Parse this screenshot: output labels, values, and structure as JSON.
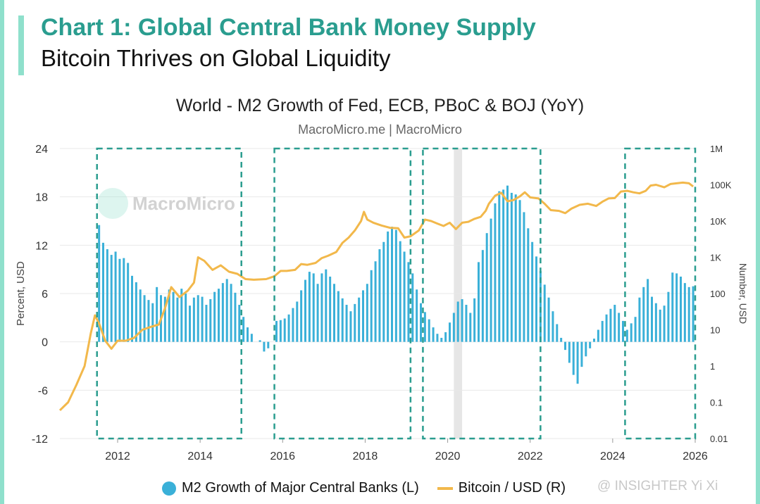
{
  "header": {
    "title": "Chart 1: Global Central Bank Money Supply",
    "subtitle": "Bitcoin Thrives on Global Liquidity"
  },
  "chart_data": {
    "type": "bar+line",
    "title": "World - M2 Growth of Fed, ECB, PBoC & BOJ (YoY)",
    "subtitle": "MacroMicro.me | MacroMicro",
    "watermark_logo_text": "MacroMicro",
    "ylabel_left": "Percent, USD",
    "ylabel_right": "Number, USD",
    "ylim_left": [
      -12,
      24
    ],
    "yticks_left": [
      "24",
      "18",
      "12",
      "6",
      "0",
      "-6",
      "-12"
    ],
    "yticks_right": [
      "1M",
      "100K",
      "10K",
      "1K",
      "100",
      "10",
      "1",
      "0.1",
      "0.01"
    ],
    "ylim_right_log10": [
      -2,
      6
    ],
    "xlim": [
      2010.6,
      2026.0
    ],
    "xticks": [
      "2012",
      "2014",
      "2016",
      "2018",
      "2020",
      "2022",
      "2024",
      "2026"
    ],
    "grid": true,
    "recession_band": [
      2020.15,
      2020.35
    ],
    "highlight_boxes": [
      [
        2011.5,
        2015.0
      ],
      [
        2015.8,
        2019.1
      ],
      [
        2019.4,
        2022.25
      ],
      [
        2024.3,
        2026.0
      ]
    ],
    "series": [
      {
        "name": "M2 Growth of Major Central Banks (L)",
        "type": "bar",
        "color": "#3ab0d8",
        "points": [
          [
            2011.55,
            14.5
          ],
          [
            2011.65,
            12.3
          ],
          [
            2011.75,
            11.5
          ],
          [
            2011.85,
            10.8
          ],
          [
            2011.95,
            11.2
          ],
          [
            2012.05,
            10.3
          ],
          [
            2012.15,
            10.4
          ],
          [
            2012.25,
            9.8
          ],
          [
            2012.35,
            8.2
          ],
          [
            2012.45,
            7.4
          ],
          [
            2012.55,
            6.5
          ],
          [
            2012.65,
            5.8
          ],
          [
            2012.75,
            5.2
          ],
          [
            2012.85,
            4.8
          ],
          [
            2012.95,
            6.8
          ],
          [
            2013.05,
            5.8
          ],
          [
            2013.15,
            5.6
          ],
          [
            2013.25,
            6.5
          ],
          [
            2013.35,
            6.2
          ],
          [
            2013.45,
            5.5
          ],
          [
            2013.55,
            6.6
          ],
          [
            2013.65,
            6.0
          ],
          [
            2013.75,
            4.5
          ],
          [
            2013.85,
            5.5
          ],
          [
            2013.95,
            5.8
          ],
          [
            2014.05,
            5.6
          ],
          [
            2014.15,
            4.6
          ],
          [
            2014.25,
            5.3
          ],
          [
            2014.35,
            6.2
          ],
          [
            2014.45,
            6.6
          ],
          [
            2014.55,
            7.3
          ],
          [
            2014.65,
            7.8
          ],
          [
            2014.75,
            7.2
          ],
          [
            2014.85,
            6.1
          ],
          [
            2014.95,
            4.6
          ],
          [
            2015.05,
            3.1
          ],
          [
            2015.15,
            1.8
          ],
          [
            2015.25,
            1.0
          ],
          [
            2015.45,
            0.2
          ],
          [
            2015.55,
            -1.2
          ],
          [
            2015.65,
            -0.8
          ],
          [
            2015.85,
            2.6
          ],
          [
            2015.95,
            2.7
          ],
          [
            2016.05,
            2.9
          ],
          [
            2016.15,
            3.4
          ],
          [
            2016.25,
            4.2
          ],
          [
            2016.35,
            5.0
          ],
          [
            2016.45,
            6.4
          ],
          [
            2016.55,
            7.7
          ],
          [
            2016.65,
            8.7
          ],
          [
            2016.75,
            8.5
          ],
          [
            2016.85,
            7.2
          ],
          [
            2016.95,
            8.5
          ],
          [
            2017.05,
            9.0
          ],
          [
            2017.15,
            8.1
          ],
          [
            2017.25,
            7.2
          ],
          [
            2017.35,
            6.3
          ],
          [
            2017.45,
            5.4
          ],
          [
            2017.55,
            4.6
          ],
          [
            2017.65,
            3.8
          ],
          [
            2017.75,
            4.7
          ],
          [
            2017.85,
            5.5
          ],
          [
            2017.95,
            6.4
          ],
          [
            2018.05,
            7.2
          ],
          [
            2018.15,
            8.9
          ],
          [
            2018.25,
            10.0
          ],
          [
            2018.35,
            11.5
          ],
          [
            2018.45,
            12.4
          ],
          [
            2018.55,
            13.7
          ],
          [
            2018.65,
            14.3
          ],
          [
            2018.75,
            13.9
          ],
          [
            2018.85,
            12.5
          ],
          [
            2018.95,
            11.2
          ],
          [
            2019.05,
            9.9
          ],
          [
            2019.15,
            8.5
          ],
          [
            2019.25,
            6.5
          ],
          [
            2019.35,
            4.8
          ],
          [
            2019.45,
            3.7
          ],
          [
            2019.55,
            2.8
          ],
          [
            2019.65,
            1.8
          ],
          [
            2019.75,
            1.0
          ],
          [
            2019.85,
            0.5
          ],
          [
            2019.95,
            1.2
          ],
          [
            2020.05,
            2.4
          ],
          [
            2020.15,
            3.6
          ],
          [
            2020.25,
            5.0
          ],
          [
            2020.35,
            5.3
          ],
          [
            2020.45,
            4.6
          ],
          [
            2020.55,
            3.6
          ],
          [
            2020.65,
            5.4
          ],
          [
            2020.75,
            9.9
          ],
          [
            2020.85,
            11.4
          ],
          [
            2020.95,
            13.5
          ],
          [
            2021.05,
            15.3
          ],
          [
            2021.15,
            17.2
          ],
          [
            2021.25,
            18.7
          ],
          [
            2021.35,
            18.9
          ],
          [
            2021.45,
            19.4
          ],
          [
            2021.55,
            18.5
          ],
          [
            2021.65,
            18.3
          ],
          [
            2021.75,
            17.6
          ],
          [
            2021.85,
            16.1
          ],
          [
            2021.95,
            14.1
          ],
          [
            2022.05,
            12.4
          ],
          [
            2022.15,
            10.6
          ],
          [
            2022.25,
            8.8
          ],
          [
            2022.35,
            7.1
          ],
          [
            2022.45,
            5.5
          ],
          [
            2022.55,
            3.8
          ],
          [
            2022.65,
            2.2
          ],
          [
            2022.75,
            0.5
          ],
          [
            2022.85,
            -1.0
          ],
          [
            2022.95,
            -2.6
          ],
          [
            2023.05,
            -4.1
          ],
          [
            2023.15,
            -5.2
          ],
          [
            2023.25,
            -3.1
          ],
          [
            2023.35,
            -1.8
          ],
          [
            2023.45,
            -0.8
          ],
          [
            2023.55,
            0.4
          ],
          [
            2023.65,
            1.5
          ],
          [
            2023.75,
            2.6
          ],
          [
            2023.85,
            3.4
          ],
          [
            2023.95,
            4.1
          ],
          [
            2024.05,
            4.6
          ],
          [
            2024.15,
            3.6
          ],
          [
            2024.25,
            2.6
          ],
          [
            2024.35,
            1.5
          ],
          [
            2024.45,
            2.3
          ],
          [
            2024.55,
            3.1
          ],
          [
            2024.65,
            5.5
          ],
          [
            2024.75,
            6.8
          ],
          [
            2024.85,
            7.8
          ],
          [
            2024.95,
            5.6
          ],
          [
            2025.05,
            4.8
          ],
          [
            2025.15,
            4.0
          ],
          [
            2025.25,
            4.5
          ],
          [
            2025.35,
            6.2
          ],
          [
            2025.45,
            8.6
          ],
          [
            2025.55,
            8.5
          ],
          [
            2025.65,
            8.1
          ],
          [
            2025.75,
            7.3
          ],
          [
            2025.85,
            6.8
          ],
          [
            2025.95,
            6.9
          ]
        ]
      },
      {
        "name": "Bitcoin / USD (R)",
        "type": "line",
        "color": "#f2b84b",
        "points": [
          [
            2010.6,
            0.06
          ],
          [
            2010.8,
            0.1
          ],
          [
            2011.0,
            0.3
          ],
          [
            2011.2,
            1.0
          ],
          [
            2011.35,
            8
          ],
          [
            2011.45,
            25
          ],
          [
            2011.55,
            15
          ],
          [
            2011.7,
            5
          ],
          [
            2011.85,
            3
          ],
          [
            2012.0,
            5
          ],
          [
            2012.2,
            5
          ],
          [
            2012.4,
            6
          ],
          [
            2012.6,
            10
          ],
          [
            2012.8,
            12
          ],
          [
            2013.0,
            14
          ],
          [
            2013.15,
            40
          ],
          [
            2013.3,
            150
          ],
          [
            2013.5,
            80
          ],
          [
            2013.7,
            120
          ],
          [
            2013.85,
            200
          ],
          [
            2013.95,
            1000
          ],
          [
            2014.1,
            800
          ],
          [
            2014.3,
            450
          ],
          [
            2014.5,
            600
          ],
          [
            2014.7,
            400
          ],
          [
            2014.9,
            350
          ],
          [
            2015.1,
            250
          ],
          [
            2015.3,
            240
          ],
          [
            2015.6,
            250
          ],
          [
            2015.8,
            300
          ],
          [
            2015.95,
            420
          ],
          [
            2016.1,
            420
          ],
          [
            2016.3,
            450
          ],
          [
            2016.45,
            650
          ],
          [
            2016.6,
            620
          ],
          [
            2016.8,
            700
          ],
          [
            2016.95,
            950
          ],
          [
            2017.1,
            1100
          ],
          [
            2017.3,
            1400
          ],
          [
            2017.45,
            2500
          ],
          [
            2017.6,
            3500
          ],
          [
            2017.75,
            5500
          ],
          [
            2017.9,
            10000
          ],
          [
            2017.97,
            18000
          ],
          [
            2018.05,
            11000
          ],
          [
            2018.2,
            9000
          ],
          [
            2018.4,
            7500
          ],
          [
            2018.6,
            6500
          ],
          [
            2018.8,
            6300
          ],
          [
            2018.95,
            3500
          ],
          [
            2019.1,
            3800
          ],
          [
            2019.3,
            5500
          ],
          [
            2019.45,
            11000
          ],
          [
            2019.6,
            10000
          ],
          [
            2019.75,
            8500
          ],
          [
            2019.9,
            7300
          ],
          [
            2020.05,
            9000
          ],
          [
            2020.2,
            6000
          ],
          [
            2020.35,
            9000
          ],
          [
            2020.5,
            9500
          ],
          [
            2020.65,
            11500
          ],
          [
            2020.8,
            13000
          ],
          [
            2020.92,
            19000
          ],
          [
            2021.0,
            30000
          ],
          [
            2021.15,
            50000
          ],
          [
            2021.3,
            60000
          ],
          [
            2021.45,
            35000
          ],
          [
            2021.6,
            38000
          ],
          [
            2021.75,
            48000
          ],
          [
            2021.87,
            62000
          ],
          [
            2022.0,
            45000
          ],
          [
            2022.2,
            42000
          ],
          [
            2022.35,
            30000
          ],
          [
            2022.5,
            20000
          ],
          [
            2022.7,
            19000
          ],
          [
            2022.85,
            16500
          ],
          [
            2023.0,
            22000
          ],
          [
            2023.2,
            28000
          ],
          [
            2023.4,
            30000
          ],
          [
            2023.6,
            26000
          ],
          [
            2023.75,
            34000
          ],
          [
            2023.9,
            42000
          ],
          [
            2024.05,
            43000
          ],
          [
            2024.2,
            65000
          ],
          [
            2024.35,
            68000
          ],
          [
            2024.5,
            62000
          ],
          [
            2024.65,
            58000
          ],
          [
            2024.8,
            68000
          ],
          [
            2024.92,
            95000
          ],
          [
            2025.05,
            100000
          ],
          [
            2025.25,
            85000
          ],
          [
            2025.4,
            105000
          ],
          [
            2025.55,
            110000
          ],
          [
            2025.7,
            115000
          ],
          [
            2025.85,
            110000
          ],
          [
            2025.95,
            90000
          ]
        ]
      }
    ]
  },
  "legend": {
    "bar_label": "M2 Growth of Major Central Banks (L)",
    "line_label": "Bitcoin / USD (R)"
  },
  "watermark": "@ INSIGHTER Yi Xi"
}
